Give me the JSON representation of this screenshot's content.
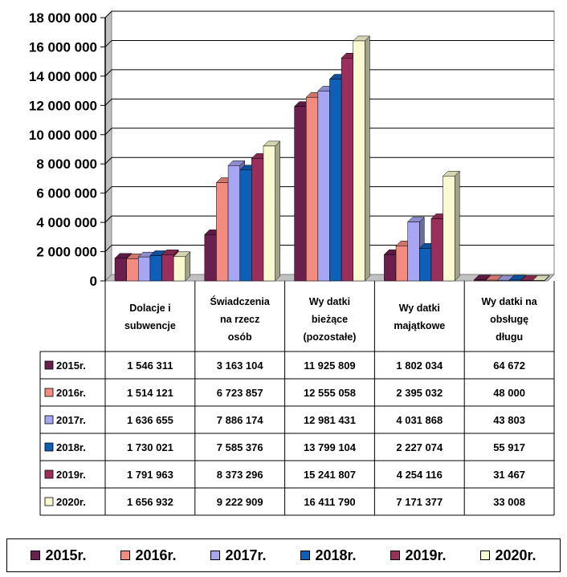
{
  "chart_data": {
    "type": "bar",
    "ylim": [
      0,
      18000000
    ],
    "y_ticks": [
      "18 000 000",
      "16 000 000",
      "14 000 000",
      "12 000 000",
      "10 000 000",
      "8 000 000",
      "6 000 000",
      "4 000 000",
      "2 000 000",
      "0"
    ],
    "y_tick_values": [
      18000000,
      16000000,
      14000000,
      12000000,
      10000000,
      8000000,
      6000000,
      4000000,
      2000000,
      0
    ],
    "grid": true,
    "categories": [
      [
        "Dolacje i",
        "subwencje"
      ],
      [
        "Świadczenia",
        "na rzecz",
        "osób"
      ],
      [
        "Wy datki",
        "bieżące",
        "(pozostałe)"
      ],
      [
        "Wy datki",
        "majątkowe"
      ],
      [
        "Wy datki na",
        "obsługę",
        "długu"
      ]
    ],
    "series": [
      {
        "name": "2015r.",
        "color": "#6b1f4f",
        "values": [
          1546311,
          3163104,
          11925809,
          1802034,
          64672
        ],
        "labels": [
          "1 546 311",
          "3 163 104",
          "11 925 809",
          "1 802 034",
          "64 672"
        ]
      },
      {
        "name": "2016r.",
        "color": "#f28b80",
        "values": [
          1514121,
          6723857,
          12555058,
          2395032,
          48000
        ],
        "labels": [
          "1 514 121",
          "6 723 857",
          "12 555 058",
          "2 395 032",
          "48 000"
        ]
      },
      {
        "name": "2017r.",
        "color": "#a6a6f2",
        "values": [
          1636655,
          7886174,
          12981431,
          4031868,
          43803
        ],
        "labels": [
          "1 636 655",
          "7 886 174",
          "12 981 431",
          "4 031 868",
          "43 803"
        ]
      },
      {
        "name": "2018r.",
        "color": "#0d5fb8",
        "values": [
          1730021,
          7585376,
          13799104,
          2227074,
          55917
        ],
        "labels": [
          "1 730 021",
          "7 585 376",
          "13 799 104",
          "2 227 074",
          "55 917"
        ]
      },
      {
        "name": "2019r.",
        "color": "#9b2f5c",
        "values": [
          1791963,
          8373296,
          15241807,
          4254116,
          31467
        ],
        "labels": [
          "1 791 963",
          "8 373 296",
          "15 241 807",
          "4 254 116",
          "31 467"
        ]
      },
      {
        "name": "2020r.",
        "color": "#fafad2",
        "values": [
          1656932,
          9222909,
          16411790,
          7171377,
          33008
        ],
        "labels": [
          "1 656 932",
          "9 222 909",
          "16 411 790",
          "7 171 377",
          "33 008"
        ]
      }
    ],
    "legend_position": "bottom"
  },
  "legend": [
    {
      "label": "2015r.",
      "color": "#6b1f4f"
    },
    {
      "label": "2016r.",
      "color": "#f28b80"
    },
    {
      "label": "2017r.",
      "color": "#a6a6f2"
    },
    {
      "label": "2018r.",
      "color": "#0d5fb8"
    },
    {
      "label": "2019r.",
      "color": "#9b2f5c"
    },
    {
      "label": "2020r.",
      "color": "#fafad2"
    }
  ]
}
